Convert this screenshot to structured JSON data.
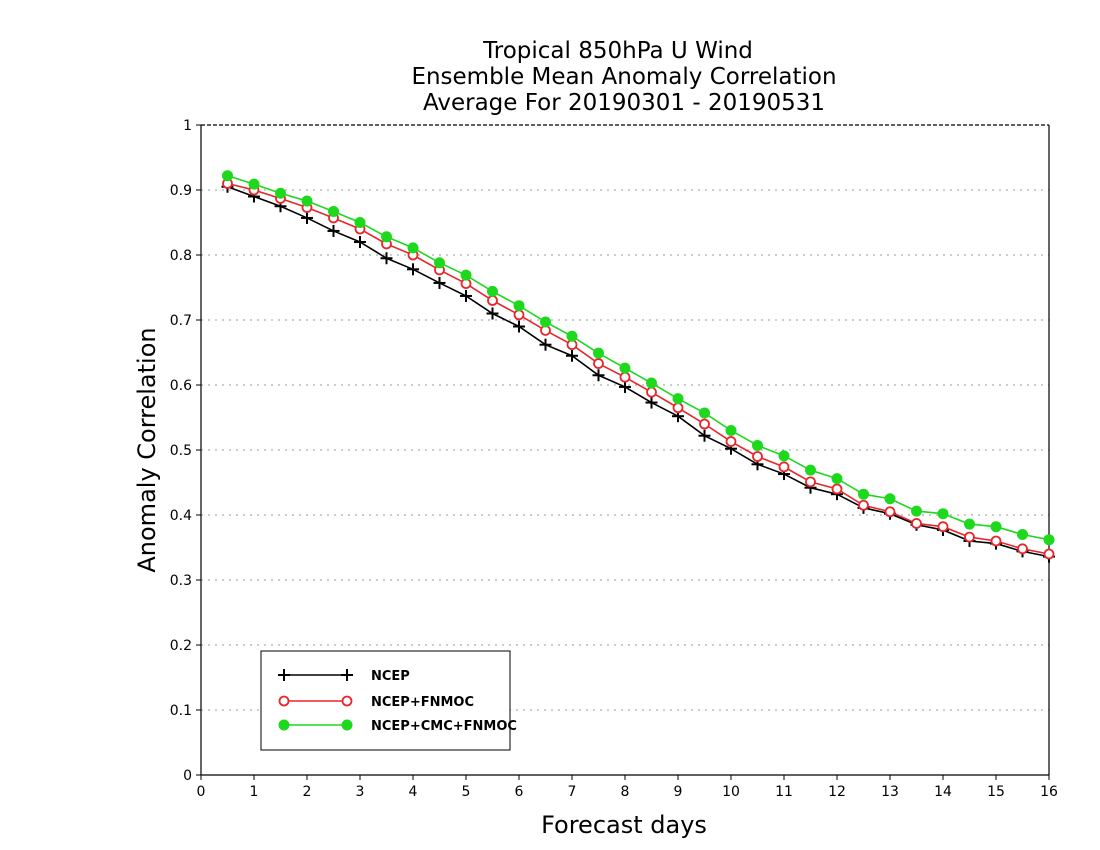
{
  "chart_data": {
    "type": "line",
    "title_lines": [
      "Tropical 850hPa U Wind",
      "Ensemble Mean Anomaly Correlation",
      "Average For 20190301 - 20190531"
    ],
    "xlabel": "Forecast days",
    "ylabel": "Anomaly Correlation",
    "xlim": [
      0,
      16
    ],
    "ylim": [
      0,
      1
    ],
    "x_ticks": [
      "0",
      "1",
      "2",
      "3",
      "4",
      "5",
      "6",
      "7",
      "8",
      "9",
      "10",
      "11",
      "12",
      "13",
      "14",
      "15",
      "16"
    ],
    "y_ticks": [
      "0",
      "0.1",
      "0.2",
      "0.3",
      "0.4",
      "0.5",
      "0.6",
      "0.7",
      "0.8",
      "0.9",
      "1"
    ],
    "grid": "horizontal dotted",
    "legend_position": "bottom-left",
    "x": [
      0.5,
      1,
      1.5,
      2,
      2.5,
      3,
      3.5,
      4,
      4.5,
      5,
      5.5,
      6,
      6.5,
      7,
      7.5,
      8,
      8.5,
      9,
      9.5,
      10,
      10.5,
      11,
      11.5,
      12,
      12.5,
      13,
      13.5,
      14,
      14.5,
      15,
      15.5,
      16
    ],
    "series": [
      {
        "name": "NCEP",
        "color": "#000000",
        "marker": "plus",
        "values": [
          0.905,
          0.89,
          0.875,
          0.857,
          0.837,
          0.82,
          0.795,
          0.778,
          0.757,
          0.737,
          0.71,
          0.69,
          0.662,
          0.645,
          0.615,
          0.597,
          0.573,
          0.552,
          0.522,
          0.502,
          0.478,
          0.463,
          0.442,
          0.432,
          0.411,
          0.402,
          0.385,
          0.377,
          0.36,
          0.356,
          0.344,
          0.336
        ]
      },
      {
        "name": "NCEP+FNMOC",
        "color": "#e8262b",
        "marker": "open-circle",
        "values": [
          0.91,
          0.9,
          0.887,
          0.873,
          0.857,
          0.84,
          0.817,
          0.8,
          0.777,
          0.756,
          0.73,
          0.708,
          0.684,
          0.662,
          0.633,
          0.612,
          0.589,
          0.565,
          0.54,
          0.513,
          0.49,
          0.474,
          0.451,
          0.44,
          0.415,
          0.405,
          0.387,
          0.382,
          0.366,
          0.36,
          0.348,
          0.34
        ]
      },
      {
        "name": "NCEP+CMC+FNMOC",
        "color": "#1ed81e",
        "marker": "filled-circle",
        "values": [
          0.922,
          0.909,
          0.895,
          0.883,
          0.867,
          0.85,
          0.828,
          0.811,
          0.788,
          0.769,
          0.744,
          0.722,
          0.697,
          0.675,
          0.649,
          0.626,
          0.603,
          0.579,
          0.557,
          0.53,
          0.507,
          0.491,
          0.469,
          0.456,
          0.432,
          0.425,
          0.406,
          0.402,
          0.386,
          0.382,
          0.37,
          0.362
        ]
      }
    ]
  }
}
